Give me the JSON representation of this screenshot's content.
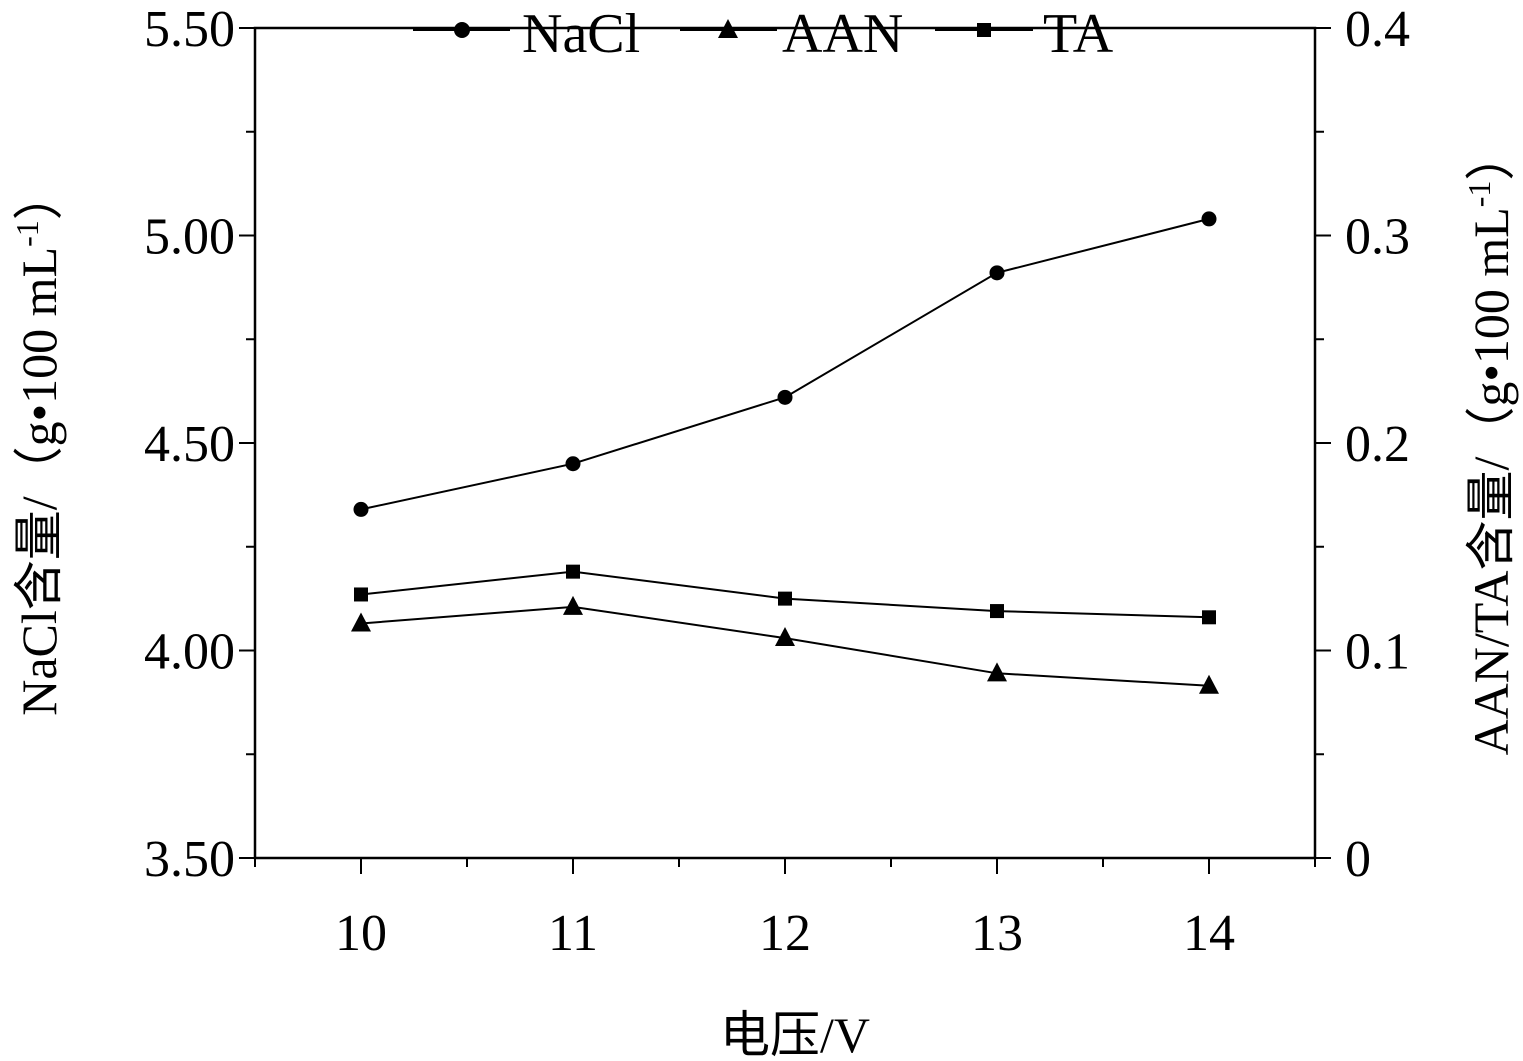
{
  "chart_data": {
    "type": "line",
    "xlabel": "电压/V",
    "ylabel_left": "NaCl含量/（g•100 mL-1）",
    "ylabel_left_parts": {
      "main": "NaCl含量/（g•100 mL",
      "sup": "-1",
      "close": "）"
    },
    "ylabel_right": "AAN/TA含量/（g•100 mL-1）",
    "ylabel_right_parts": {
      "main": "AAN/TA含量/（g•100 mL",
      "sup": "-1",
      "close": "）"
    },
    "x": [
      10,
      11,
      12,
      13,
      14
    ],
    "x_tick_labels": [
      "10",
      "11",
      "12",
      "13",
      "14"
    ],
    "xlim": [
      9.5,
      14.5
    ],
    "ylim_left": [
      3.5,
      5.5
    ],
    "ylim_right": [
      0,
      0.4
    ],
    "y_left_tick_labels": [
      "3.50",
      "4.00",
      "4.50",
      "5.00",
      "5.50"
    ],
    "y_left_tick_values": [
      3.5,
      4.0,
      4.5,
      5.0,
      5.5
    ],
    "y_right_tick_labels": [
      "0",
      "0.1",
      "0.2",
      "0.3",
      "0.4"
    ],
    "y_right_tick_values": [
      0,
      0.1,
      0.2,
      0.3,
      0.4
    ],
    "legend_position": "top-center",
    "series": [
      {
        "name": "NaCl",
        "axis": "left",
        "marker": "circle",
        "values": [
          4.34,
          4.45,
          4.61,
          4.91,
          5.04
        ]
      },
      {
        "name": "AAN",
        "axis": "right",
        "marker": "triangle",
        "values": [
          0.113,
          0.121,
          0.106,
          0.089,
          0.083
        ]
      },
      {
        "name": "TA",
        "axis": "right",
        "marker": "square",
        "values": [
          0.127,
          0.138,
          0.125,
          0.119,
          0.116
        ]
      }
    ]
  }
}
